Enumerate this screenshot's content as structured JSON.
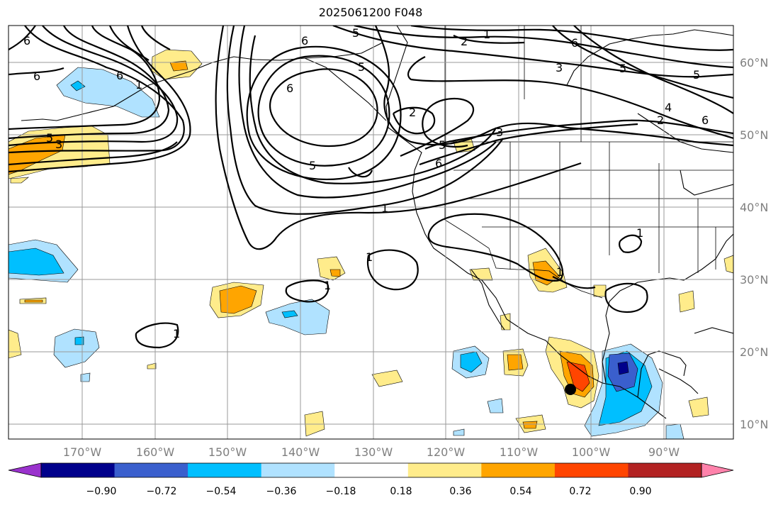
{
  "title": "2025061200 F048",
  "map": {
    "lon_labels": [
      "170°W",
      "160°W",
      "150°W",
      "140°W",
      "130°W",
      "120°W",
      "110°W",
      "100°W",
      "90°W"
    ],
    "lat_labels": [
      "60°N",
      "50°N",
      "40°N",
      "30°N",
      "20°N",
      "10°N"
    ],
    "contour_labels": [
      "6",
      "5",
      "2",
      "1",
      "6",
      "6",
      "3",
      "5",
      "5",
      "6",
      "4",
      "2",
      "6",
      "6",
      "1",
      "5",
      "5",
      "3",
      "2",
      "5",
      "3",
      "6",
      "6",
      "5",
      "1",
      "1",
      "1",
      "1",
      "1",
      "1"
    ],
    "marker": "storm-center-dot"
  },
  "colorbar": {
    "tick_labels": [
      "−0.90",
      "−0.72",
      "−0.54",
      "−0.36",
      "−0.18",
      "0.18",
      "0.36",
      "0.54",
      "0.72",
      "0.90"
    ],
    "colors": [
      "#9a32cd",
      "#00008b",
      "#3a5fcd",
      "#00bfff",
      "#b0e2ff",
      "#ffffff",
      "#ffec8b",
      "#ffa500",
      "#ff4500",
      "#b22222",
      "#ff82ab"
    ]
  }
}
